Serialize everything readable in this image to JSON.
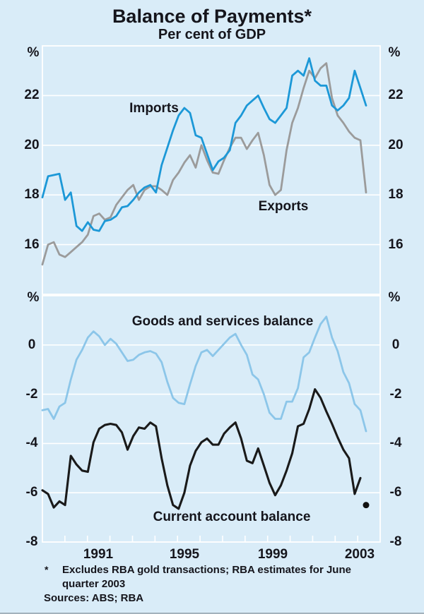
{
  "header": {
    "title": "Balance of Payments*",
    "subtitle": "Per cent of GDP"
  },
  "footnotes": {
    "symbol": "*",
    "line1": "Excludes RBA gold transactions; RBA estimates for June",
    "line2": "quarter 2003",
    "sources": "Sources: ABS; RBA"
  },
  "colors": {
    "background": "#d9ecf8",
    "gridline": "#ffffff",
    "text": "#15151c",
    "imports_line": "#1c98d7",
    "exports_line": "#9b9b9b",
    "goods_services_line": "#8cc6e9",
    "current_account_line": "#1a1a1a",
    "estimate_dot": "#111111"
  },
  "chart_data": {
    "type": "line",
    "frequency": "quarterly",
    "x_start": "1989Q1",
    "x_end": "2003Q2",
    "x_tick_labels": [
      "1991",
      "1995",
      "1999",
      "2003"
    ],
    "x_minor_ticks": "yearly",
    "grid": "on",
    "legend": "inline-labels",
    "panels": [
      {
        "name": "trade-shares",
        "y_unit": "%",
        "ylim": [
          14,
          24
        ],
        "gridlines": [
          22,
          20,
          18,
          16
        ],
        "ytick_labels": [
          "22",
          "20",
          "18",
          "16"
        ],
        "series": [
          {
            "name": "Imports",
            "color_key": "imports_line",
            "values": [
              17.9,
              18.75,
              18.8,
              18.85,
              17.8,
              18.1,
              16.75,
              16.55,
              16.9,
              16.6,
              16.55,
              16.95,
              17.0,
              17.15,
              17.5,
              17.55,
              17.8,
              18.1,
              18.3,
              18.4,
              18.1,
              19.2,
              19.9,
              20.6,
              21.2,
              21.5,
              21.3,
              20.4,
              20.3,
              19.65,
              19.0,
              19.35,
              19.5,
              19.8,
              20.9,
              21.2,
              21.6,
              21.8,
              22.0,
              21.5,
              21.05,
              20.9,
              21.2,
              21.5,
              22.8,
              23.0,
              22.8,
              23.5,
              22.6,
              22.4,
              22.4,
              21.6,
              21.4,
              21.6,
              21.9,
              23.0,
              22.3,
              21.6
            ]
          },
          {
            "name": "Exports",
            "color_key": "exports_line",
            "values": [
              15.2,
              16.0,
              16.1,
              15.6,
              15.5,
              15.7,
              15.9,
              16.1,
              16.4,
              17.15,
              17.25,
              17.0,
              17.1,
              17.6,
              17.9,
              18.2,
              18.4,
              17.8,
              18.2,
              18.35,
              18.35,
              18.2,
              18.0,
              18.6,
              18.9,
              19.3,
              19.6,
              19.1,
              20.0,
              19.4,
              18.9,
              18.85,
              19.4,
              19.9,
              20.3,
              20.3,
              19.85,
              20.2,
              20.5,
              19.6,
              18.4,
              18.0,
              18.2,
              19.8,
              20.9,
              21.5,
              22.3,
              23.0,
              22.7,
              23.1,
              23.3,
              21.9,
              21.2,
              20.9,
              20.55,
              20.3,
              20.2,
              18.1
            ]
          }
        ]
      },
      {
        "name": "balances",
        "y_unit": "%",
        "ylim": [
          -8,
          2
        ],
        "gridlines": [
          0,
          -2,
          -4,
          -6
        ],
        "ytick_labels": [
          "0",
          "-2",
          "-4",
          "-6",
          "-8"
        ],
        "series": [
          {
            "name": "Goods and services balance",
            "color_key": "goods_services_line",
            "values": [
              -2.65,
              -2.6,
              -3.0,
              -2.5,
              -2.35,
              -1.4,
              -0.6,
              -0.2,
              0.3,
              0.55,
              0.35,
              0.0,
              0.25,
              0.05,
              -0.3,
              -0.65,
              -0.6,
              -0.4,
              -0.3,
              -0.25,
              -0.35,
              -0.7,
              -1.5,
              -2.15,
              -2.35,
              -2.4,
              -1.6,
              -0.85,
              -0.3,
              -0.2,
              -0.45,
              -0.2,
              0.05,
              0.3,
              0.45,
              0.0,
              -0.4,
              -1.2,
              -1.4,
              -2.0,
              -2.75,
              -3.0,
              -3.0,
              -2.3,
              -2.3,
              -1.75,
              -0.5,
              -0.3,
              0.3,
              0.85,
              1.15,
              0.3,
              -0.25,
              -1.1,
              -1.55,
              -2.4,
              -2.65,
              -3.5
            ]
          },
          {
            "name": "Current account balance",
            "color_key": "current_account_line",
            "values": [
              -5.9,
              -6.05,
              -6.6,
              -6.35,
              -6.5,
              -4.5,
              -4.85,
              -5.1,
              -5.15,
              -3.95,
              -3.4,
              -3.25,
              -3.2,
              -3.25,
              -3.55,
              -4.25,
              -3.7,
              -3.35,
              -3.4,
              -3.15,
              -3.3,
              -4.6,
              -5.7,
              -6.5,
              -6.65,
              -6.0,
              -4.9,
              -4.3,
              -3.95,
              -3.8,
              -4.05,
              -4.05,
              -3.6,
              -3.35,
              -3.15,
              -3.8,
              -4.7,
              -4.8,
              -4.2,
              -4.9,
              -5.6,
              -6.1,
              -5.7,
              -5.1,
              -4.4,
              -3.3,
              -3.2,
              -2.6,
              -1.8,
              -2.15,
              -2.7,
              -3.2,
              -3.75,
              -4.25,
              -4.6,
              -6.05,
              -5.4
            ],
            "estimate_point": {
              "quarter": "2003Q2",
              "value": -6.5
            }
          }
        ]
      }
    ]
  }
}
